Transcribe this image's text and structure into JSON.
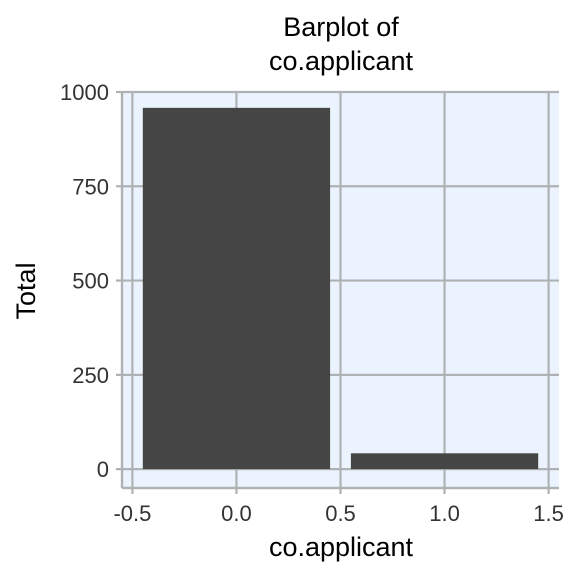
{
  "chart_data": {
    "type": "bar",
    "title_lines": [
      "Barplot of",
      "co.applicant"
    ],
    "xlabel": "co.applicant",
    "ylabel": "Total",
    "x": [
      0,
      1
    ],
    "values": [
      958,
      42
    ],
    "bar_width": 0.9,
    "xlim": [
      -0.55,
      1.55
    ],
    "ylim": [
      -50,
      1000
    ],
    "x_ticks": [
      -0.5,
      0.0,
      0.5,
      1.0,
      1.5
    ],
    "x_tick_labels": [
      "-0.5",
      "0.0",
      "0.5",
      "1.0",
      "1.5"
    ],
    "y_ticks": [
      0,
      250,
      500,
      750,
      1000
    ],
    "y_tick_labels": [
      "0",
      "250",
      "500",
      "750",
      "1000"
    ],
    "grid": true,
    "legend": "none",
    "colors": {
      "bar": "#454545",
      "panel_background": "#EBF4FE",
      "grid": "#AFB2B5",
      "axis_text": "#333333"
    }
  }
}
